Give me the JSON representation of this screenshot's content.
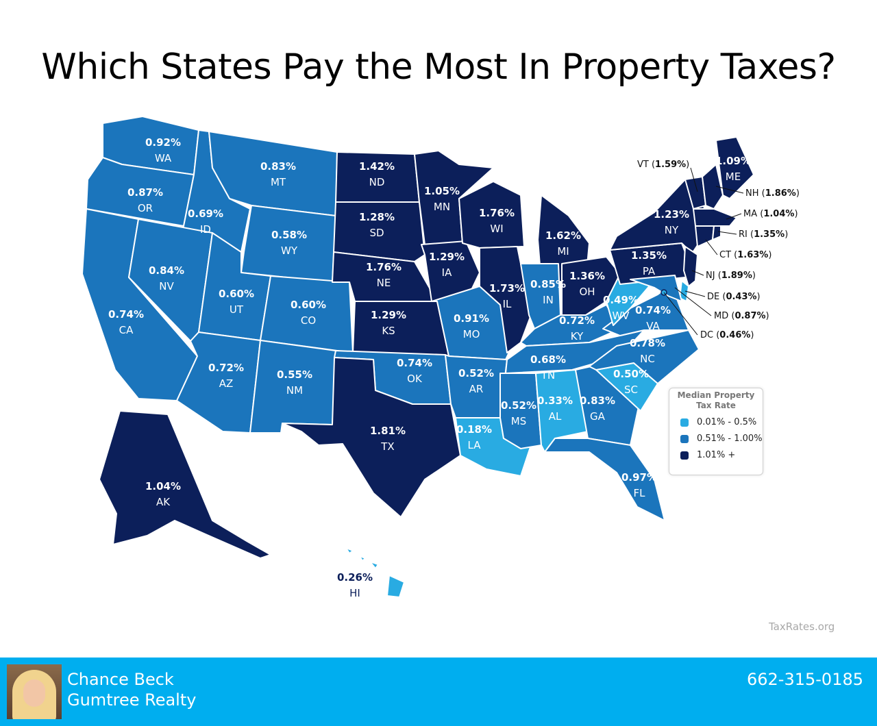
{
  "title": "Which States Pay the Most In Property Taxes?",
  "colors": {
    "low": "#29abe2",
    "mid": "#1b75bc",
    "high": "#0c1f5a",
    "footer": "#00aeef"
  },
  "legend": {
    "title": "Median Property\nTax Rate",
    "items": [
      {
        "label": "0.01% - 0.5%",
        "tier": "low"
      },
      {
        "label": "0.51% - 1.00%",
        "tier": "mid"
      },
      {
        "label": "1.01% +",
        "tier": "high"
      }
    ]
  },
  "states": [
    {
      "abbr": "WA",
      "rate": "0.92%",
      "tier": "mid"
    },
    {
      "abbr": "OR",
      "rate": "0.87%",
      "tier": "mid"
    },
    {
      "abbr": "CA",
      "rate": "0.74%",
      "tier": "mid"
    },
    {
      "abbr": "ID",
      "rate": "0.69%",
      "tier": "mid"
    },
    {
      "abbr": "NV",
      "rate": "0.84%",
      "tier": "mid"
    },
    {
      "abbr": "MT",
      "rate": "0.83%",
      "tier": "mid"
    },
    {
      "abbr": "WY",
      "rate": "0.58%",
      "tier": "mid"
    },
    {
      "abbr": "UT",
      "rate": "0.60%",
      "tier": "mid"
    },
    {
      "abbr": "AZ",
      "rate": "0.72%",
      "tier": "mid"
    },
    {
      "abbr": "CO",
      "rate": "0.60%",
      "tier": "mid"
    },
    {
      "abbr": "NM",
      "rate": "0.55%",
      "tier": "mid"
    },
    {
      "abbr": "ND",
      "rate": "1.42%",
      "tier": "high"
    },
    {
      "abbr": "SD",
      "rate": "1.28%",
      "tier": "high"
    },
    {
      "abbr": "NE",
      "rate": "1.76%",
      "tier": "high"
    },
    {
      "abbr": "KS",
      "rate": "1.29%",
      "tier": "high"
    },
    {
      "abbr": "OK",
      "rate": "0.74%",
      "tier": "mid"
    },
    {
      "abbr": "TX",
      "rate": "1.81%",
      "tier": "high"
    },
    {
      "abbr": "MN",
      "rate": "1.05%",
      "tier": "high"
    },
    {
      "abbr": "IA",
      "rate": "1.29%",
      "tier": "high"
    },
    {
      "abbr": "MO",
      "rate": "0.91%",
      "tier": "mid"
    },
    {
      "abbr": "AR",
      "rate": "0.52%",
      "tier": "mid"
    },
    {
      "abbr": "LA",
      "rate": "0.18%",
      "tier": "low"
    },
    {
      "abbr": "WI",
      "rate": "1.76%",
      "tier": "high"
    },
    {
      "abbr": "IL",
      "rate": "1.73%",
      "tier": "high"
    },
    {
      "abbr": "MI",
      "rate": "1.62%",
      "tier": "high"
    },
    {
      "abbr": "IN",
      "rate": "0.85%",
      "tier": "mid"
    },
    {
      "abbr": "OH",
      "rate": "1.36%",
      "tier": "high"
    },
    {
      "abbr": "KY",
      "rate": "0.72%",
      "tier": "mid"
    },
    {
      "abbr": "TN",
      "rate": "0.68%",
      "tier": "mid"
    },
    {
      "abbr": "MS",
      "rate": "0.52%",
      "tier": "mid"
    },
    {
      "abbr": "AL",
      "rate": "0.33%",
      "tier": "low"
    },
    {
      "abbr": "GA",
      "rate": "0.83%",
      "tier": "mid"
    },
    {
      "abbr": "FL",
      "rate": "0.97%",
      "tier": "mid"
    },
    {
      "abbr": "SC",
      "rate": "0.50%",
      "tier": "low"
    },
    {
      "abbr": "NC",
      "rate": "0.78%",
      "tier": "mid"
    },
    {
      "abbr": "VA",
      "rate": "0.74%",
      "tier": "mid"
    },
    {
      "abbr": "WV",
      "rate": "0.49%",
      "tier": "low"
    },
    {
      "abbr": "PA",
      "rate": "1.35%",
      "tier": "high"
    },
    {
      "abbr": "NY",
      "rate": "1.23%",
      "tier": "high"
    },
    {
      "abbr": "ME",
      "rate": "1.09%",
      "tier": "high"
    },
    {
      "abbr": "AK",
      "rate": "1.04%",
      "tier": "high"
    },
    {
      "abbr": "HI",
      "rate": "0.26%",
      "tier": "low"
    }
  ],
  "callouts": [
    {
      "abbr": "VT",
      "rate": "1.59%",
      "tier": "high"
    },
    {
      "abbr": "NH",
      "rate": "1.86%",
      "tier": "high"
    },
    {
      "abbr": "MA",
      "rate": "1.04%",
      "tier": "high"
    },
    {
      "abbr": "RI",
      "rate": "1.35%",
      "tier": "high"
    },
    {
      "abbr": "CT",
      "rate": "1.63%",
      "tier": "high"
    },
    {
      "abbr": "NJ",
      "rate": "1.89%",
      "tier": "high"
    },
    {
      "abbr": "DE",
      "rate": "0.43%",
      "tier": "low"
    },
    {
      "abbr": "MD",
      "rate": "0.87%",
      "tier": "mid"
    },
    {
      "abbr": "DC",
      "rate": "0.46%",
      "tier": "low"
    }
  ],
  "source": "TaxRates.org",
  "footer": {
    "agent_name": "Chance Beck",
    "company": "Gumtree Realty",
    "phone": "662-315-0185"
  }
}
